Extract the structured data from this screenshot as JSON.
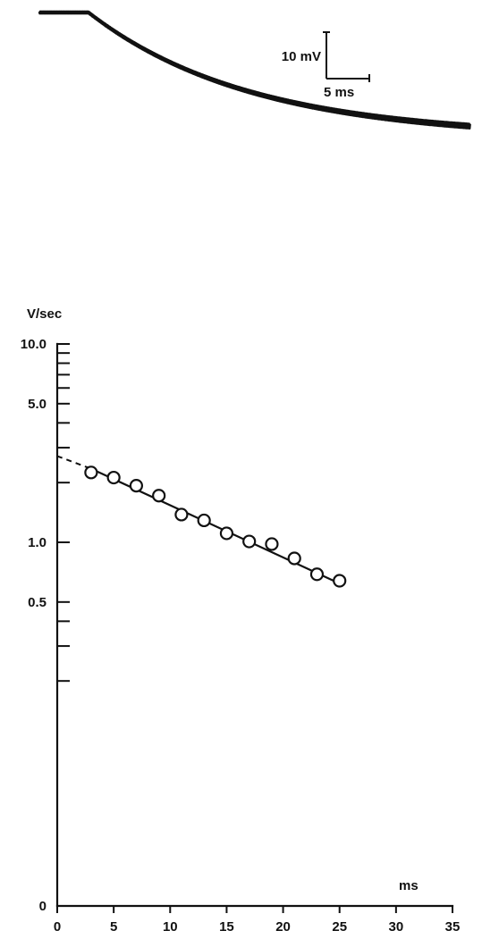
{
  "chart_data": [
    {
      "type": "line",
      "title": "",
      "trace": {
        "plateau_until_ms": 3.2,
        "start_mV": 0,
        "final_mV": -27,
        "tau_ms": 10.5,
        "duration_ms": 28
      },
      "scale_bar": {
        "voltage_label": "10 mV",
        "voltage_mV": 10,
        "time_label": "5 ms",
        "time_ms": 5
      }
    },
    {
      "type": "scatter",
      "title": "",
      "xlabel": "ms",
      "ylabel": "V/sec",
      "x_ticks": [
        "0",
        "5",
        "10",
        "15",
        "20",
        "25",
        "30",
        "35"
      ],
      "x_tick_values": [
        0,
        5,
        10,
        15,
        20,
        25,
        30,
        35
      ],
      "y_tick_labels": [
        {
          "label": "10.0",
          "value": 10.0
        },
        {
          "label": "5.0",
          "value": 5.0
        },
        {
          "label": "1.0",
          "value": 1.0
        },
        {
          "label": "0.5",
          "value": 0.5
        },
        {
          "label": "0",
          "value": 0.1
        }
      ],
      "y_minor_ticks": [
        9,
        8,
        7,
        6,
        4,
        3,
        2,
        0.4,
        0.3,
        0.2
      ],
      "xlim": [
        0,
        35
      ],
      "ylim": [
        0.1,
        10
      ],
      "y_scale": "log",
      "points": [
        {
          "x": 3,
          "y": 2.25
        },
        {
          "x": 5,
          "y": 2.12
        },
        {
          "x": 7,
          "y": 1.93
        },
        {
          "x": 9,
          "y": 1.72
        },
        {
          "x": 11,
          "y": 1.38
        },
        {
          "x": 13,
          "y": 1.29
        },
        {
          "x": 15,
          "y": 1.11
        },
        {
          "x": 17,
          "y": 1.01
        },
        {
          "x": 19,
          "y": 0.98
        },
        {
          "x": 21,
          "y": 0.83
        },
        {
          "x": 23,
          "y": 0.69
        },
        {
          "x": 25,
          "y": 0.64
        }
      ],
      "fit_line": {
        "x_start": 3,
        "x_end": 25,
        "y_start": 2.35,
        "y_end": 0.62
      },
      "extrapolation": {
        "x_start": 0,
        "x_end": 3,
        "y_start": 2.72,
        "y_end": 2.35
      }
    }
  ]
}
